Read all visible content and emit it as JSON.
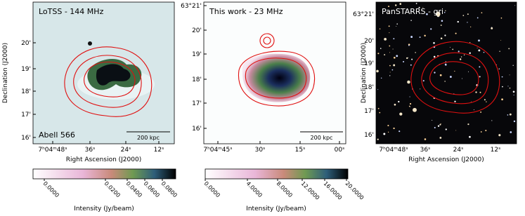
{
  "panels": [
    {
      "label": "LoTSS - 144 MHz",
      "corner_label": "Abell 566",
      "scale_bar": "200 kpc",
      "y_ticks": [
        "20'",
        "19'",
        "18'",
        "17'",
        "16'"
      ],
      "x_ticks": [
        "7ʰ04ᵐ48ˢ",
        "36ˢ",
        "24ˢ",
        "12ˢ"
      ],
      "x_axis_label": "Right Ascension (J2000)",
      "y_axis_label": "Declination (J2000)",
      "colorbar": {
        "ticks": [
          "0.0000",
          "0.0200",
          "0.0400",
          "0.0600",
          "0.0800"
        ],
        "label": "Intensity (Jy/beam)"
      }
    },
    {
      "label": "This work - 23 MHz",
      "scale_bar": "200 kpc",
      "y_ticks": [
        "63°21'",
        "20'",
        "19'",
        "18'",
        "17'",
        "16'"
      ],
      "x_ticks": [
        "7ʰ04ᵐ45ˢ",
        "30ˢ",
        "15ˢ",
        "00ˢ"
      ],
      "colorbar": {
        "ticks": [
          "0.0000",
          "4.0000",
          "8.0000",
          "12.0000",
          "16.0000",
          "20.0000"
        ],
        "label": "Intensity (Jy/beam)"
      }
    },
    {
      "label": "PanSTARRS - gri",
      "y_ticks": [
        "63°21'",
        "20'",
        "19'",
        "18'",
        "17'",
        "16'"
      ],
      "x_ticks": [
        "7ʰ04ᵐ48ˢ",
        "36ˢ",
        "24ˢ",
        "12ˢ"
      ],
      "x_axis_label": "Right Ascension (J2000)",
      "y_axis_label": "Declination (J2000)"
    }
  ]
}
